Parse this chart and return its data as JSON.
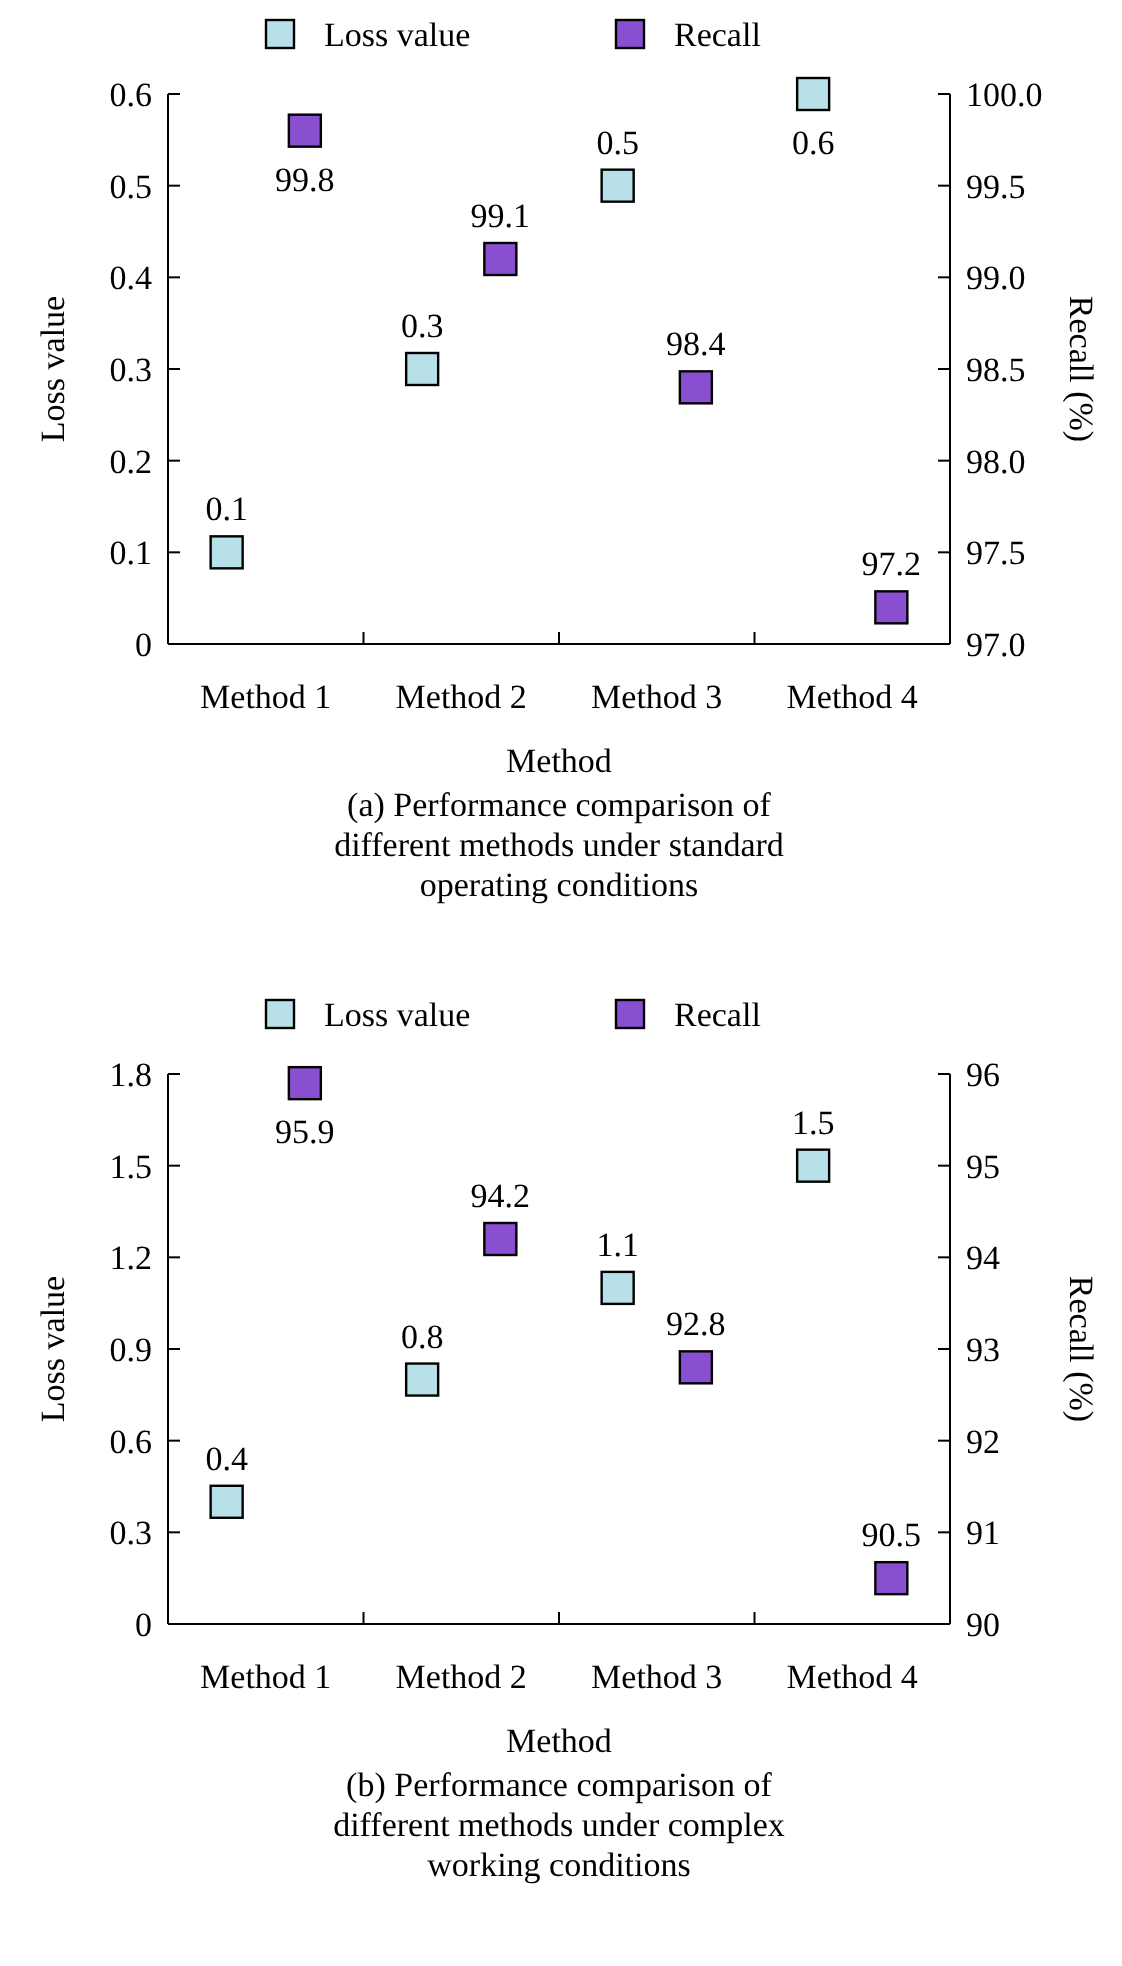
{
  "chart_data": [
    {
      "type": "scatter",
      "xlabel": "Method",
      "ylabel": "Loss value",
      "y2label": "Recall (%)",
      "categories": [
        "Method 1",
        "Method 2",
        "Method 3",
        "Method 4"
      ],
      "series": [
        {
          "name": "Loss value",
          "color": "#b7e0e8",
          "values": [
            0.1,
            0.3,
            0.5,
            0.6
          ]
        },
        {
          "name": "Recall",
          "color": "#8a4fd0",
          "axis": "y2",
          "values": [
            99.8,
            99.1,
            98.4,
            97.2
          ]
        }
      ],
      "ylim": [
        0,
        0.6
      ],
      "yticks": [
        {
          "value": 0,
          "label": "0"
        },
        0.1,
        0.2,
        0.3,
        0.4,
        0.5,
        0.6
      ],
      "y2lim": [
        97,
        100
      ],
      "y2ticks": [
        {
          "value": 97,
          "label": "97.0"
        },
        97.5,
        {
          "value": 98,
          "label": "98.0"
        },
        98.5,
        {
          "value": 99,
          "label": "99.0"
        },
        99.5,
        {
          "value": 100,
          "label": "100.0"
        }
      ],
      "data_labels": true,
      "marker": "square",
      "legend": "top",
      "grid": false,
      "annotations": [
        "(a) Performance comparison of different methods under standard operating conditions"
      ]
    },
    {
      "type": "scatter",
      "xlabel": "Method",
      "ylabel": "Loss value",
      "y2label": "Recall (%)",
      "categories": [
        "Method 1",
        "Method 2",
        "Method 3",
        "Method 4"
      ],
      "series": [
        {
          "name": "Loss value",
          "color": "#b7e0e8",
          "values": [
            0.4,
            0.8,
            1.1,
            1.5
          ]
        },
        {
          "name": "Recall",
          "color": "#8a4fd0",
          "axis": "y2",
          "values": [
            95.9,
            94.2,
            92.8,
            90.5
          ]
        }
      ],
      "ylim": [
        0,
        1.8
      ],
      "yticks": [
        {
          "value": 0,
          "label": "0"
        },
        0.3,
        0.6,
        0.9,
        1.2,
        1.5,
        1.8
      ],
      "y2lim": [
        90,
        96
      ],
      "y2ticks": [
        90,
        91,
        92,
        93,
        94,
        95,
        96
      ],
      "data_labels": true,
      "marker": "square",
      "legend": "top",
      "grid": false,
      "annotations": [
        "(b) Performance comparison of different methods under complex working conditions"
      ]
    }
  ]
}
